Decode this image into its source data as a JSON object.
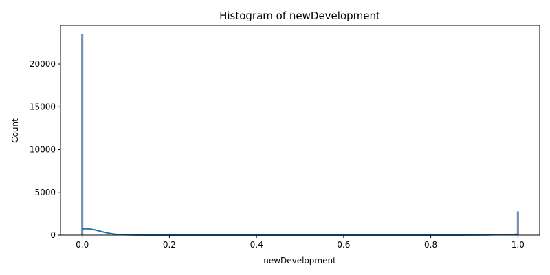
{
  "chart_data": {
    "type": "bar",
    "title": "Histogram of newDevelopment",
    "xlabel": "newDevelopment",
    "ylabel": "Count",
    "xlim": [
      -0.05,
      1.05
    ],
    "ylim": [
      0,
      24500
    ],
    "x_ticks": [
      0.0,
      0.2,
      0.4,
      0.6,
      0.8,
      1.0
    ],
    "x_tick_labels": [
      "0.0",
      "0.2",
      "0.4",
      "0.6",
      "0.8",
      "1.0"
    ],
    "y_ticks": [
      0,
      5000,
      10000,
      15000,
      20000
    ],
    "y_tick_labels": [
      "0",
      "5000",
      "10000",
      "15000",
      "20000"
    ],
    "bars": [
      {
        "x": 0.0,
        "value": 23500
      },
      {
        "x": 1.0,
        "value": 2750
      }
    ],
    "kde_line": {
      "x": [
        0.0,
        0.01,
        0.02,
        0.03,
        0.04,
        0.05,
        0.06,
        0.07,
        0.08,
        0.1,
        0.12,
        0.15,
        0.2,
        0.3,
        0.5,
        0.7,
        0.85,
        0.9,
        0.93,
        0.96,
        0.98,
        1.0
      ],
      "y": [
        720,
        750,
        700,
        600,
        470,
        340,
        230,
        140,
        80,
        30,
        10,
        3,
        0,
        0,
        0,
        0,
        2,
        8,
        25,
        55,
        85,
        100
      ]
    },
    "colors": {
      "bar": "#7f9fbf",
      "bar_edge": "#5a7ea3",
      "kde": "#1f77b4"
    }
  }
}
